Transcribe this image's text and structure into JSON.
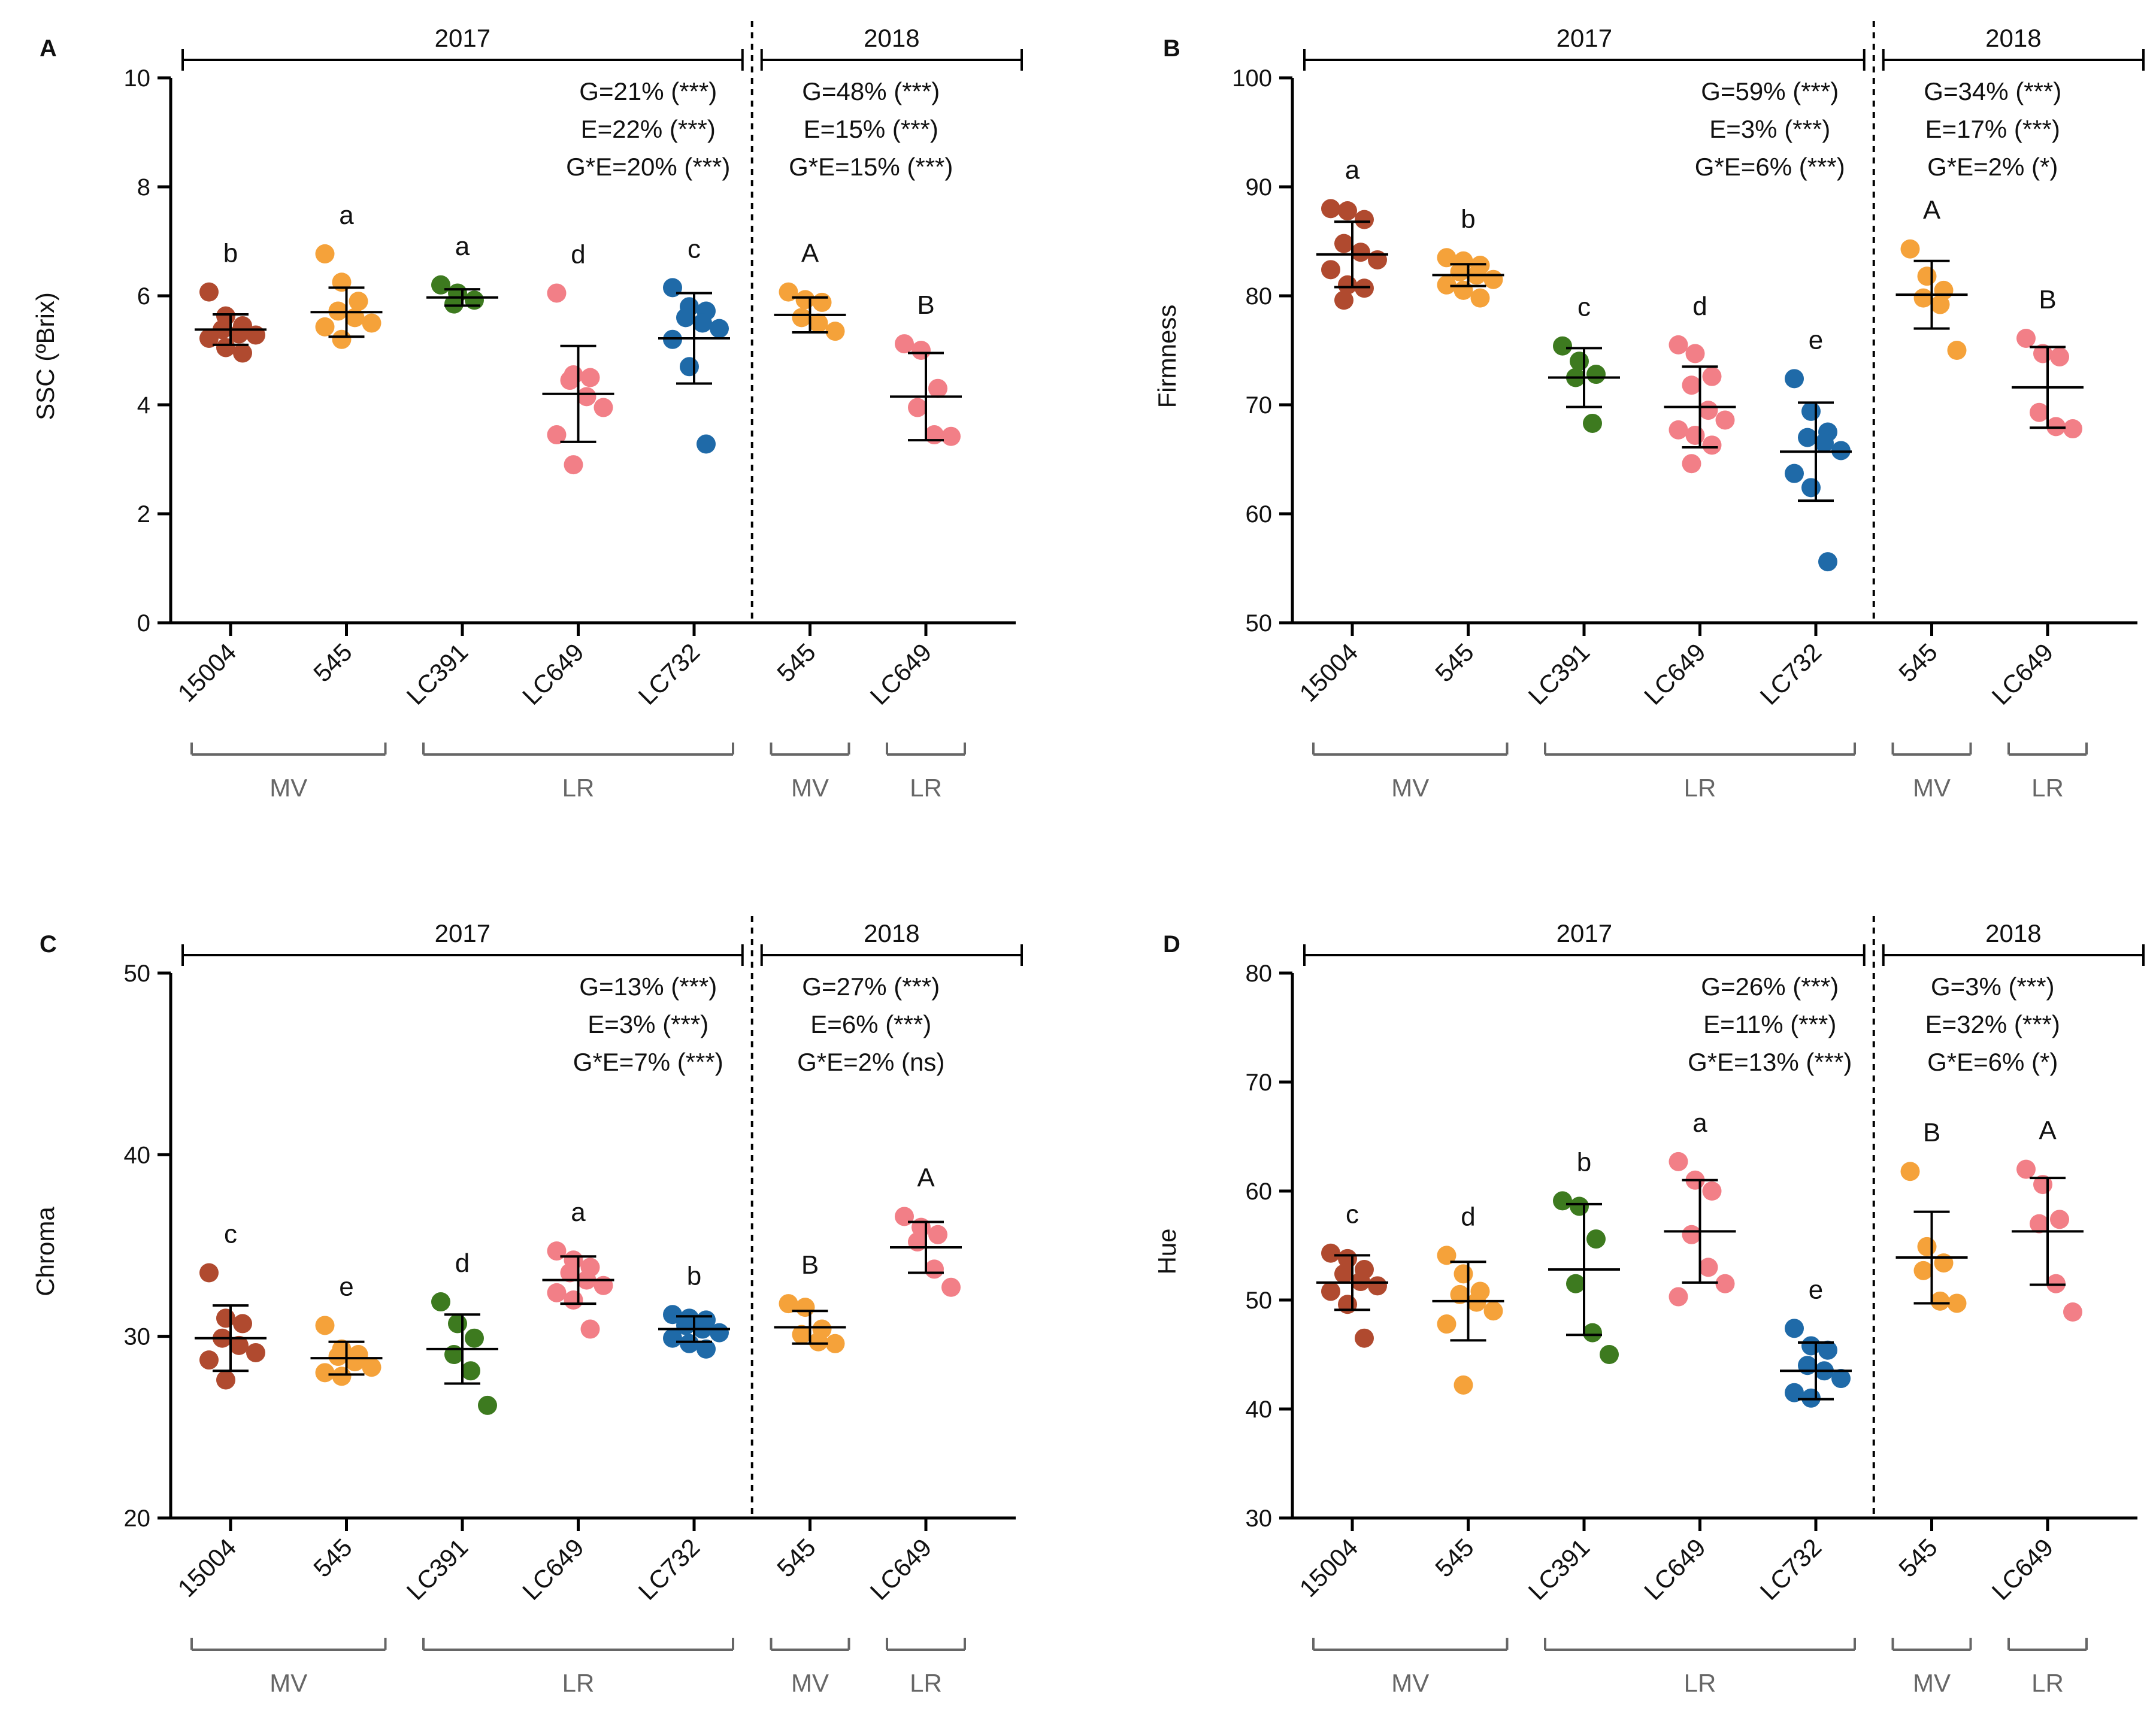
{
  "figure": {
    "background": "#ffffff"
  },
  "colors": {
    "15004": "#b04a2f",
    "545": "#f5a23a",
    "LC391": "#3d7a1f",
    "LC649": "#f27f87",
    "LC732": "#1f6aa8",
    "axis": "#000000",
    "bracket": "#666666"
  },
  "chart_data": [
    {
      "panel": "A",
      "type": "scatter",
      "ylabel": "SSC (ºBrix)",
      "ylim": [
        0,
        10
      ],
      "yticks": [
        0,
        2,
        4,
        6,
        8,
        10
      ],
      "year_labels": [
        "2017",
        "2018"
      ],
      "stats_2017": [
        "G=21% (***)",
        "E=22% (***)",
        "G*E=20% (***)"
      ],
      "stats_2018": [
        "G=48% (***)",
        "E=15% (***)",
        "G*E=15% (***)"
      ],
      "groups": [
        {
          "name": "15004",
          "color": "15004",
          "letter": "b",
          "mean": 5.38,
          "sd": 0.28,
          "points": [
            6.07,
            5.63,
            5.45,
            5.38,
            5.3,
            5.28,
            5.22,
            5.05,
            4.95
          ]
        },
        {
          "name": "545",
          "color": "545",
          "letter": "a",
          "mean": 5.7,
          "sd": 0.45,
          "points": [
            6.77,
            6.25,
            5.9,
            5.72,
            5.6,
            5.5,
            5.43,
            5.2
          ]
        },
        {
          "name": "LC391",
          "color": "LC391",
          "letter": "a",
          "mean": 5.97,
          "sd": 0.15,
          "points": [
            6.2,
            6.05,
            5.92,
            5.85
          ]
        },
        {
          "name": "LC649",
          "color": "LC649",
          "letter": "d",
          "mean": 4.2,
          "sd": 0.88,
          "points": [
            6.05,
            4.55,
            4.5,
            4.45,
            4.15,
            3.95,
            3.45,
            2.9
          ]
        },
        {
          "name": "LC732",
          "color": "LC732",
          "letter": "c",
          "mean": 5.22,
          "sd": 0.83,
          "points": [
            6.15,
            5.8,
            5.72,
            5.6,
            5.5,
            5.4,
            5.2,
            4.7,
            3.28
          ]
        },
        {
          "name": "545",
          "color": "545",
          "letter": "A",
          "mean": 5.65,
          "sd": 0.32,
          "points": [
            6.07,
            5.93,
            5.88,
            5.6,
            5.5,
            5.35
          ]
        },
        {
          "name": "LC649",
          "color": "LC649",
          "letter": "B",
          "mean": 4.15,
          "sd": 0.8,
          "points": [
            5.12,
            5.0,
            4.3,
            3.95,
            3.45,
            3.42
          ]
        }
      ]
    },
    {
      "panel": "B",
      "type": "scatter",
      "ylabel": "Firmness",
      "ylim": [
        50,
        100
      ],
      "yticks": [
        50,
        60,
        70,
        80,
        90,
        100
      ],
      "year_labels": [
        "2017",
        "2018"
      ],
      "stats_2017": [
        "G=59% (***)",
        "E=3% (***)",
        "G*E=6% (***)"
      ],
      "stats_2018": [
        "G=34% (***)",
        "E=17% (***)",
        "G*E=2% (*)"
      ],
      "groups": [
        {
          "name": "15004",
          "color": "15004",
          "letter": "a",
          "mean": 83.8,
          "sd": 3.0,
          "points": [
            88.0,
            87.8,
            87.0,
            84.8,
            84.0,
            83.3,
            82.4,
            81.0,
            80.7,
            79.6
          ]
        },
        {
          "name": "545",
          "color": "545",
          "letter": "b",
          "mean": 81.9,
          "sd": 1.0,
          "points": [
            83.5,
            83.2,
            82.8,
            82.2,
            81.9,
            81.5,
            81.0,
            80.5,
            79.8
          ]
        },
        {
          "name": "LC391",
          "color": "LC391",
          "letter": "c",
          "mean": 72.5,
          "sd": 2.7,
          "points": [
            75.4,
            74.0,
            72.8,
            72.5,
            68.3
          ]
        },
        {
          "name": "LC649",
          "color": "LC649",
          "letter": "d",
          "mean": 69.8,
          "sd": 3.7,
          "points": [
            75.5,
            74.7,
            72.6,
            71.8,
            69.5,
            68.6,
            67.7,
            67.2,
            66.3,
            64.6
          ]
        },
        {
          "name": "LC732",
          "color": "LC732",
          "letter": "e",
          "mean": 65.7,
          "sd": 4.5,
          "points": [
            72.4,
            69.4,
            67.5,
            67.0,
            66.5,
            65.8,
            63.7,
            62.4,
            55.6
          ]
        },
        {
          "name": "545",
          "color": "545",
          "letter": "A",
          "mean": 80.1,
          "sd": 3.1,
          "points": [
            84.3,
            81.8,
            80.5,
            79.8,
            79.2,
            75.0
          ]
        },
        {
          "name": "LC649",
          "color": "LC649",
          "letter": "B",
          "mean": 71.6,
          "sd": 3.7,
          "points": [
            76.1,
            74.7,
            74.4,
            69.3,
            68.0,
            67.8
          ]
        }
      ]
    },
    {
      "panel": "C",
      "type": "scatter",
      "ylabel": "Chroma",
      "ylim": [
        20,
        50
      ],
      "yticks": [
        20,
        30,
        40,
        50
      ],
      "year_labels": [
        "2017",
        "2018"
      ],
      "stats_2017": [
        "G=13% (***)",
        "E=3% (***)",
        "G*E=7% (***)"
      ],
      "stats_2018": [
        "G=27% (***)",
        "E=6% (***)",
        "G*E=2% (ns)"
      ],
      "groups": [
        {
          "name": "15004",
          "color": "15004",
          "letter": "c",
          "mean": 29.9,
          "sd": 1.8,
          "points": [
            33.5,
            31.0,
            30.7,
            29.9,
            29.5,
            29.1,
            28.7,
            27.6
          ]
        },
        {
          "name": "545",
          "color": "545",
          "letter": "e",
          "mean": 28.8,
          "sd": 0.9,
          "points": [
            30.6,
            29.3,
            29.0,
            28.9,
            28.6,
            28.3,
            28.0,
            27.8
          ]
        },
        {
          "name": "LC391",
          "color": "LC391",
          "letter": "d",
          "mean": 29.3,
          "sd": 1.9,
          "points": [
            31.9,
            30.7,
            29.9,
            29.0,
            28.1,
            26.2
          ]
        },
        {
          "name": "LC649",
          "color": "LC649",
          "letter": "a",
          "mean": 33.1,
          "sd": 1.3,
          "points": [
            34.7,
            34.2,
            33.8,
            33.5,
            33.1,
            32.8,
            32.4,
            32.0,
            30.4
          ]
        },
        {
          "name": "LC732",
          "color": "LC732",
          "letter": "b",
          "mean": 30.4,
          "sd": 0.7,
          "points": [
            31.2,
            31.0,
            30.9,
            30.6,
            30.4,
            30.2,
            29.9,
            29.6,
            29.3
          ]
        },
        {
          "name": "545",
          "color": "545",
          "letter": "B",
          "mean": 30.5,
          "sd": 0.9,
          "points": [
            31.8,
            31.6,
            30.4,
            30.1,
            29.7,
            29.6
          ]
        },
        {
          "name": "LC649",
          "color": "LC649",
          "letter": "A",
          "mean": 34.9,
          "sd": 1.4,
          "points": [
            36.6,
            36.0,
            35.6,
            35.2,
            33.7,
            32.7
          ]
        }
      ]
    },
    {
      "panel": "D",
      "type": "scatter",
      "ylabel": "Hue",
      "ylim": [
        30,
        80
      ],
      "yticks": [
        30,
        40,
        50,
        60,
        70,
        80
      ],
      "year_labels": [
        "2017",
        "2018"
      ],
      "stats_2017": [
        "G=26% (***)",
        "E=11% (***)",
        "G*E=13% (***)"
      ],
      "stats_2018": [
        "G=3% (***)",
        "E=32% (***)",
        "G*E=6% (*)"
      ],
      "groups": [
        {
          "name": "15004",
          "color": "15004",
          "letter": "c",
          "mean": 51.6,
          "sd": 2.5,
          "points": [
            54.3,
            53.8,
            52.8,
            52.4,
            51.7,
            51.3,
            50.8,
            49.6,
            46.5
          ]
        },
        {
          "name": "545",
          "color": "545",
          "letter": "d",
          "mean": 49.9,
          "sd": 3.6,
          "points": [
            54.1,
            52.4,
            50.8,
            50.5,
            49.8,
            49.0,
            47.8,
            42.2
          ]
        },
        {
          "name": "LC391",
          "color": "LC391",
          "letter": "b",
          "mean": 52.8,
          "sd": 6.0,
          "points": [
            59.1,
            58.6,
            55.6,
            51.5,
            47.0,
            45.0
          ]
        },
        {
          "name": "LC649",
          "color": "LC649",
          "letter": "a",
          "mean": 56.3,
          "sd": 4.7,
          "points": [
            62.7,
            61.0,
            60.0,
            56.0,
            53.0,
            51.5,
            50.3
          ]
        },
        {
          "name": "LC732",
          "color": "LC732",
          "letter": "e",
          "mean": 43.5,
          "sd": 2.6,
          "points": [
            47.4,
            45.8,
            45.4,
            44.0,
            43.5,
            42.8,
            41.5,
            41.0
          ]
        },
        {
          "name": "545",
          "color": "545",
          "letter": "B",
          "mean": 53.9,
          "sd": 4.2,
          "points": [
            61.8,
            54.9,
            53.4,
            52.7,
            49.9,
            49.7
          ]
        },
        {
          "name": "LC649",
          "color": "LC649",
          "letter": "A",
          "mean": 56.3,
          "sd": 4.9,
          "points": [
            62.0,
            60.6,
            57.4,
            57.0,
            51.5,
            48.9
          ]
        }
      ]
    }
  ],
  "x_groups": [
    {
      "label": "MV",
      "from": 0,
      "to": 1
    },
    {
      "label": "LR",
      "from": 2,
      "to": 4
    },
    {
      "label": "MV",
      "from": 5,
      "to": 5
    },
    {
      "label": "LR",
      "from": 6,
      "to": 6
    }
  ]
}
